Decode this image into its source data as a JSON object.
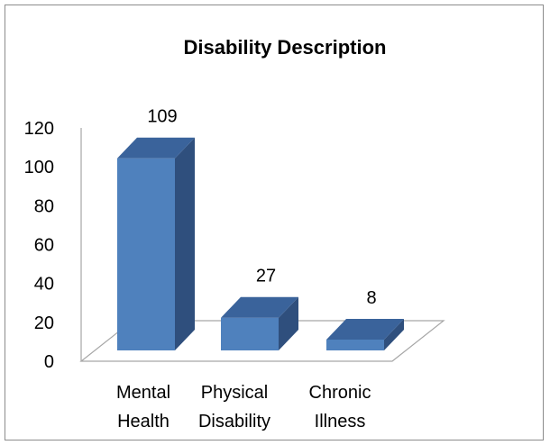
{
  "chart_data": {
    "type": "bar",
    "title": "Disability Description",
    "categories": [
      [
        "Mental",
        "Health"
      ],
      [
        "Physical",
        "Disability"
      ],
      [
        "Chronic",
        "Illness"
      ]
    ],
    "values": [
      109,
      27,
      8
    ],
    "data_labels": [
      "109",
      "27",
      "8"
    ],
    "ylim": [
      0,
      120
    ],
    "yticks": [
      "0",
      "20",
      "40",
      "60",
      "80",
      "100",
      "120"
    ],
    "xlabel": "",
    "ylabel": "",
    "grid": false,
    "legend": "none",
    "style": "3d-column"
  },
  "colors": {
    "bar_front": "#4f81bd",
    "bar_side": "#2f4f7d",
    "bar_top": "#3a639b",
    "axis": "#a6a6a6"
  }
}
